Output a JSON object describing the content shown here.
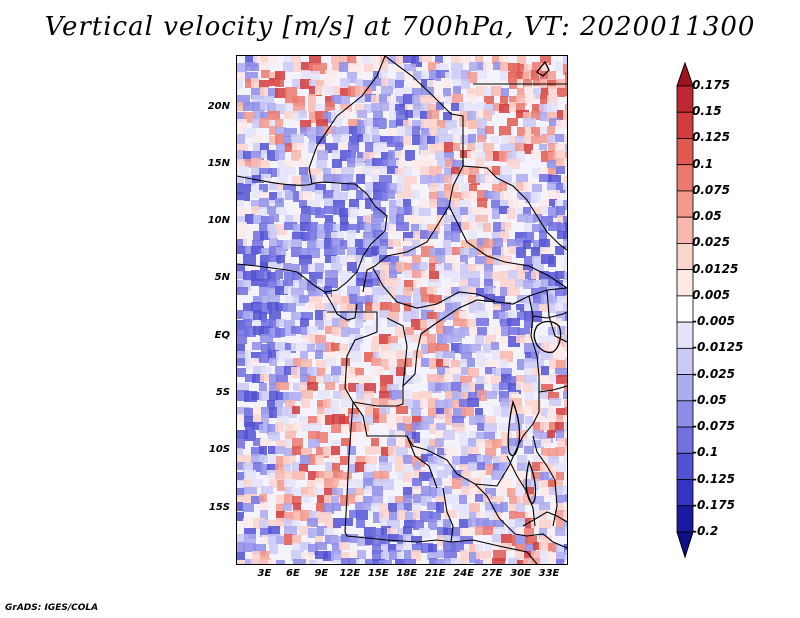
{
  "title": "Vertical velocity [m/s] at 700hPa, VT: 2020011300",
  "map": {
    "variable": "Vertical velocity",
    "units": "m/s",
    "level": "700hPa",
    "valid_time": "2020011300",
    "lat_range": [
      -20,
      24.5
    ],
    "lon_range": [
      0,
      35
    ],
    "lat_labels": [
      {
        "lat": 20,
        "text": "20N"
      },
      {
        "lat": 15,
        "text": "15N"
      },
      {
        "lat": 10,
        "text": "10N"
      },
      {
        "lat": 5,
        "text": "5N"
      },
      {
        "lat": 0,
        "text": "EQ"
      },
      {
        "lat": -5,
        "text": "5S"
      },
      {
        "lat": -10,
        "text": "10S"
      },
      {
        "lat": -15,
        "text": "15S"
      }
    ],
    "lon_labels": [
      {
        "lon": 3,
        "text": "3E"
      },
      {
        "lon": 6,
        "text": "6E"
      },
      {
        "lon": 9,
        "text": "9E"
      },
      {
        "lon": 12,
        "text": "12E"
      },
      {
        "lon": 15,
        "text": "15E"
      },
      {
        "lon": 18,
        "text": "18E"
      },
      {
        "lon": 21,
        "text": "21E"
      },
      {
        "lon": 24,
        "text": "24E"
      },
      {
        "lon": 27,
        "text": "27E"
      },
      {
        "lon": 30,
        "text": "30E"
      },
      {
        "lon": 33,
        "text": "33E"
      }
    ]
  },
  "colorbar": {
    "labels": [
      "0.175",
      "0.15",
      "0.125",
      "0.1",
      "0.075",
      "0.05",
      "0.025",
      "0.0125",
      "0.005",
      "-0.005",
      "-0.0125",
      "-0.025",
      "-0.05",
      "-0.075",
      "-0.1",
      "-0.125",
      "-0.175",
      "-0.2"
    ],
    "colors": [
      "#a0141e",
      "#be2832",
      "#d23c3c",
      "#e15a50",
      "#ea7a6e",
      "#f29a8e",
      "#f8b8ae",
      "#fbd4cc",
      "#fdeae6",
      "#ffffff",
      "#e4e4fa",
      "#cacaf6",
      "#acacf0",
      "#8e8ee8",
      "#7070e0",
      "#5252d4",
      "#3434c0",
      "#1a1aa0",
      "#10108a"
    ]
  },
  "credit": "GrADS: IGES/COLA"
}
